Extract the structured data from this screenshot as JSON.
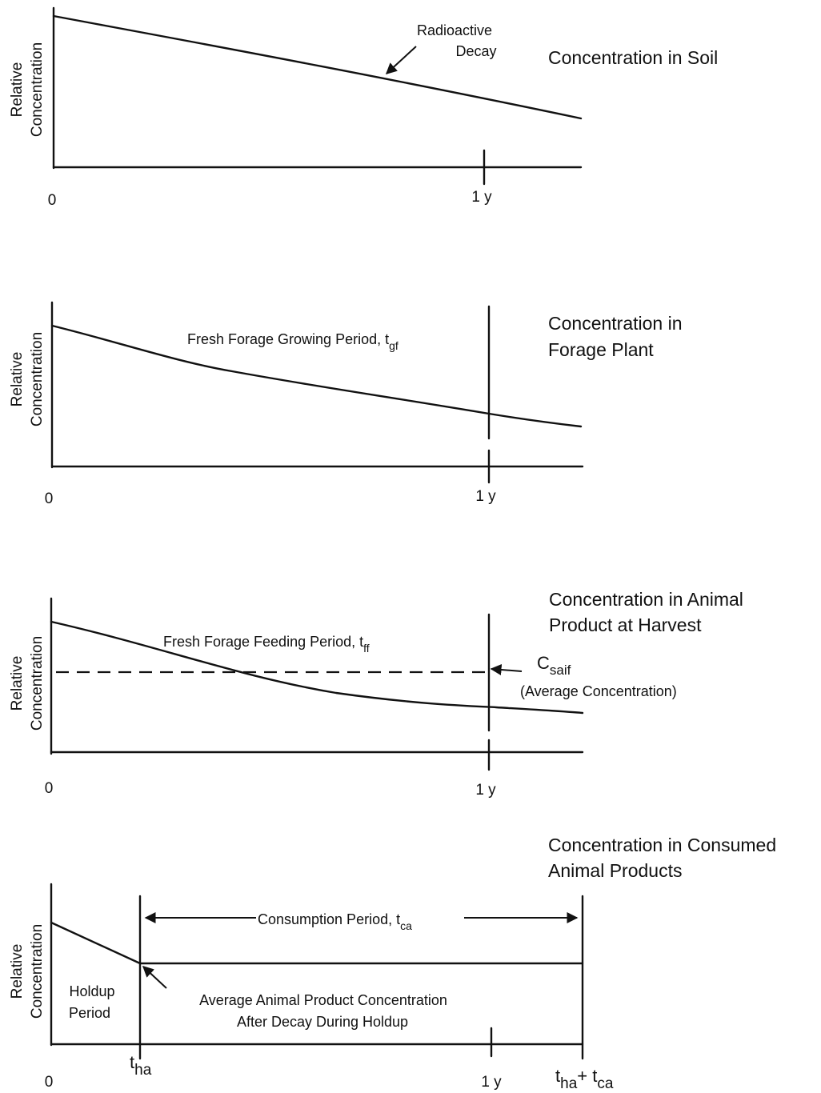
{
  "panels": [
    {
      "title_lines": [
        "Concentration in Soil"
      ],
      "ylabel_lines": [
        "Relative",
        "Concentration"
      ],
      "x_tick_start": "0",
      "x_tick_year": "1 y",
      "annotation_lines": [
        "Radioactive",
        "Decay"
      ]
    },
    {
      "title_lines": [
        "Concentration in",
        "Forage Plant"
      ],
      "ylabel_lines": [
        "Relative",
        "Concentration"
      ],
      "x_tick_start": "0",
      "x_tick_year": "1 y",
      "period_label": "Fresh Forage Growing Period, t",
      "period_sub": "gf"
    },
    {
      "title_lines": [
        "Concentration in Animal",
        "Product at Harvest"
      ],
      "ylabel_lines": [
        "Relative",
        "Concentration"
      ],
      "x_tick_start": "0",
      "x_tick_year": "1 y",
      "period_label": "Fresh Forage Feeding Period, t",
      "period_sub": "ff",
      "avg_symbol": "C",
      "avg_sub": "saif",
      "avg_note": "(Average Concentration)"
    },
    {
      "title_lines": [
        "Concentration in Consumed",
        "Animal Products"
      ],
      "ylabel_lines": [
        "Relative",
        "Concentration"
      ],
      "x_tick_start": "0",
      "x_tick_year": "1 y",
      "x_tick_tha_main": "t",
      "x_tick_tha_sub": "ha",
      "x_tick_end_t1": "t",
      "x_tick_end_sub1": "ha",
      "x_tick_end_op": "+ t",
      "x_tick_end_sub2": "ca",
      "holdup_lines": [
        "Holdup",
        "Period"
      ],
      "consumption_label": "Consumption Period, t",
      "consumption_sub": "ca",
      "avg_note_lines": [
        "Average Animal Product Concentration",
        "After Decay During Holdup"
      ]
    }
  ]
}
